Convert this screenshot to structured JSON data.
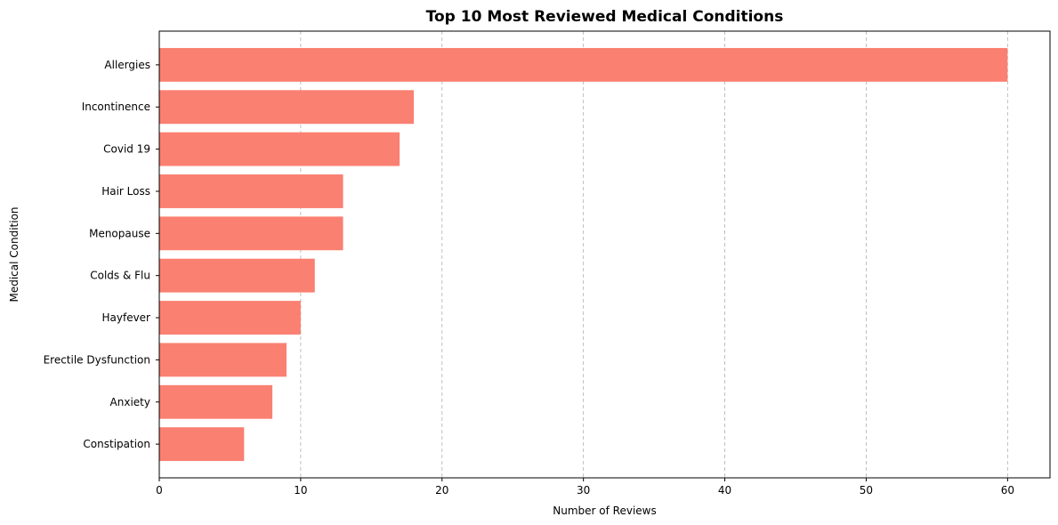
{
  "chart_data": {
    "type": "bar",
    "orientation": "horizontal",
    "title": "Top 10 Most Reviewed Medical Conditions",
    "xlabel": "Number of Reviews",
    "ylabel": "Medical Condition",
    "categories": [
      "Allergies",
      "Incontinence",
      "Covid 19",
      "Hair Loss",
      "Menopause",
      "Colds & Flu",
      "Hayfever",
      "Erectile Dysfunction",
      "Anxiety",
      "Constipation"
    ],
    "values": [
      60,
      18,
      17,
      13,
      13,
      11,
      10,
      9,
      8,
      6
    ],
    "xlim": [
      0,
      63
    ],
    "xticks": [
      0,
      10,
      20,
      30,
      40,
      50,
      60
    ],
    "grid": "x-axis dashed",
    "colors": {
      "bar": "#fa8072",
      "grid": "#b0b0b0"
    }
  }
}
